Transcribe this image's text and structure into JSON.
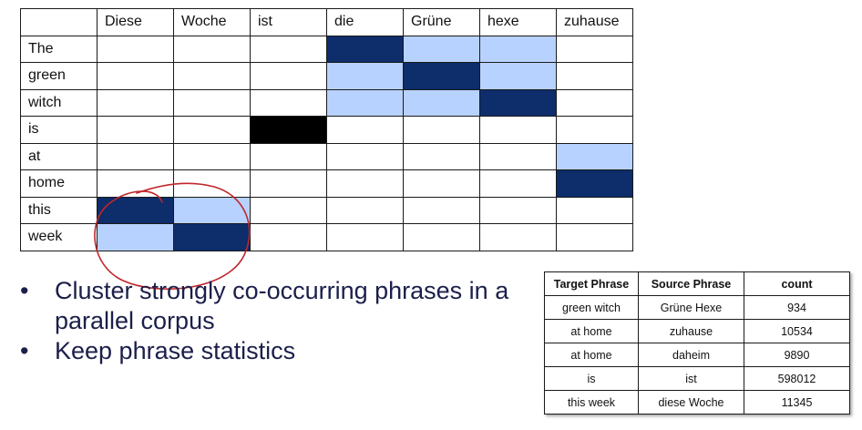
{
  "matrix": {
    "columns": [
      "Diese",
      "Woche",
      "ist",
      "die",
      "Grüne",
      "hexe",
      "zuhause"
    ],
    "rows": [
      {
        "label": "The",
        "cells": [
          "",
          "",
          "",
          "dark",
          "light",
          "light",
          ""
        ]
      },
      {
        "label": "green",
        "cells": [
          "",
          "",
          "",
          "light",
          "dark",
          "light",
          ""
        ]
      },
      {
        "label": "witch",
        "cells": [
          "",
          "",
          "",
          "light",
          "light",
          "dark",
          ""
        ]
      },
      {
        "label": "is",
        "cells": [
          "",
          "",
          "black",
          "",
          "",
          "",
          ""
        ]
      },
      {
        "label": "at",
        "cells": [
          "",
          "",
          "",
          "",
          "",
          "",
          "light"
        ]
      },
      {
        "label": "home",
        "cells": [
          "",
          "",
          "",
          "",
          "",
          "",
          "dark"
        ]
      },
      {
        "label": "this",
        "cells": [
          "dark",
          "light",
          "",
          "",
          "",
          "",
          ""
        ]
      },
      {
        "label": "week",
        "cells": [
          "light",
          "dark",
          "",
          "",
          "",
          "",
          ""
        ]
      }
    ],
    "colors": {
      "dark": "#0d2d6b",
      "light": "#b8d2ff",
      "black": "#000000",
      "annotation": "#c0262c"
    }
  },
  "bullets": [
    {
      "marker": "•",
      "text": "Cluster strongly co-occurring phrases in a parallel corpus"
    },
    {
      "marker": "•",
      "text": "Keep phrase statistics"
    }
  ],
  "phrase_table": {
    "headers": [
      "Target Phrase",
      "Source Phrase",
      "count"
    ],
    "rows": [
      [
        "green witch",
        "Grüne Hexe",
        "934"
      ],
      [
        "at home",
        "zuhause",
        "10534"
      ],
      [
        "at home",
        "daheim",
        "9890"
      ],
      [
        "is",
        "ist",
        "598012"
      ],
      [
        "this week",
        "diese Woche",
        "11345"
      ]
    ]
  }
}
